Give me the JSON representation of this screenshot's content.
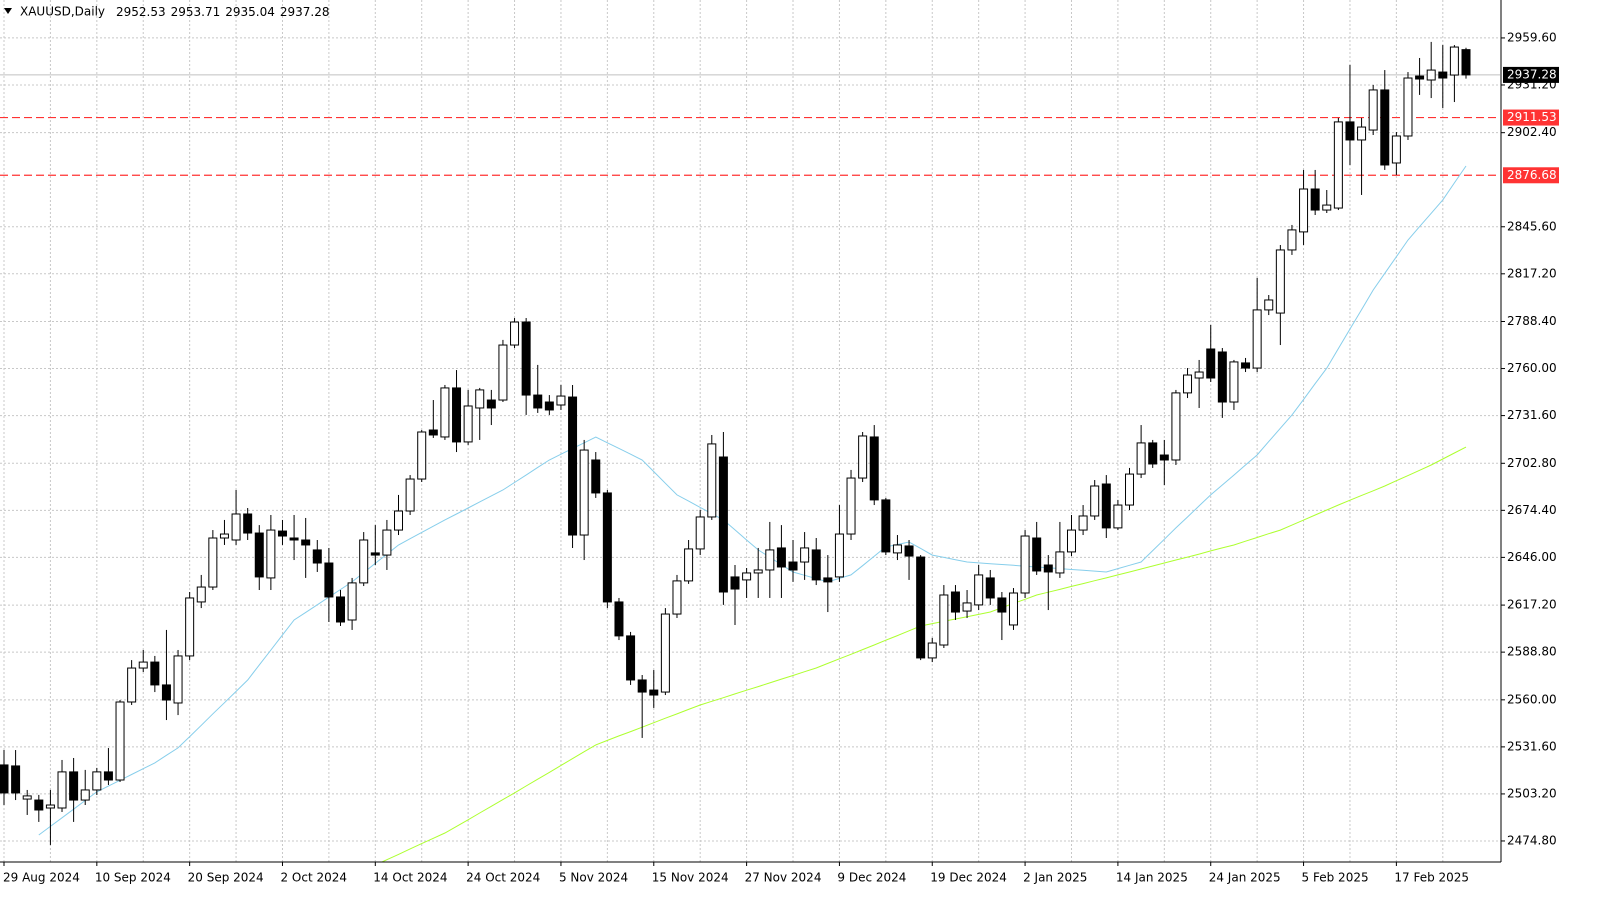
{
  "chart_data": {
    "type": "candlestick",
    "title": "XAUUSD,Daily",
    "categories": [
      "29 Aug 2024",
      null,
      null,
      null,
      null,
      null,
      null,
      null,
      "10 Sep 2024",
      null,
      null,
      null,
      null,
      null,
      null,
      null,
      "20 Sep 2024",
      null,
      null,
      null,
      null,
      null,
      null,
      null,
      "2 Oct 2024",
      null,
      null,
      null,
      null,
      null,
      null,
      null,
      "14 Oct 2024",
      null,
      null,
      null,
      null,
      null,
      null,
      null,
      "24 Oct 2024",
      null,
      null,
      null,
      null,
      null,
      null,
      null,
      "5 Nov 2024",
      null,
      null,
      null,
      null,
      null,
      null,
      null,
      "15 Nov 2024",
      null,
      null,
      null,
      null,
      null,
      null,
      null,
      "27 Nov 2024",
      null,
      null,
      null,
      null,
      null,
      null,
      null,
      "9 Dec 2024",
      null,
      null,
      null,
      null,
      null,
      null,
      null,
      "19 Dec 2024",
      null,
      null,
      null,
      null,
      null,
      null,
      null,
      "2 Jan 2025",
      null,
      null,
      null,
      null,
      null,
      null,
      null,
      "14 Jan 2025",
      null,
      null,
      null,
      null,
      null,
      null,
      null,
      "24 Jan 2025",
      null,
      null,
      null,
      null,
      null,
      null,
      null,
      "5 Feb 2025",
      null,
      null,
      null,
      null,
      null,
      null,
      null,
      "17 Feb 2025",
      null,
      null,
      null,
      null,
      null,
      null
    ],
    "candles": [
      [
        2520.7,
        2529.7,
        2496.5,
        2503.8
      ],
      [
        2520.1,
        2529.7,
        2499.5,
        2503.8
      ],
      [
        2500.1,
        2505.6,
        2490.5,
        2502.0
      ],
      [
        2499.5,
        2502.6,
        2486.3,
        2493.5
      ],
      [
        2494.7,
        2505.6,
        2472.4,
        2496.5
      ],
      [
        2494.7,
        2523.7,
        2492.3,
        2516.5
      ],
      [
        2516.5,
        2524.9,
        2486.3,
        2499.5
      ],
      [
        2499.5,
        2517.7,
        2496.5,
        2505.6
      ],
      [
        2505.6,
        2518.9,
        2502.6,
        2516.5
      ],
      [
        2516.5,
        2530.9,
        2508.6,
        2511.6
      ],
      [
        2511.6,
        2559.9,
        2510.4,
        2558.7
      ],
      [
        2558.7,
        2584.0,
        2556.9,
        2579.2
      ],
      [
        2579.2,
        2590.1,
        2576.8,
        2582.8
      ],
      [
        2582.8,
        2586.5,
        2564.7,
        2569.0
      ],
      [
        2569.0,
        2602.2,
        2547.8,
        2559.9
      ],
      [
        2558.1,
        2590.1,
        2550.8,
        2586.5
      ],
      [
        2586.5,
        2625.1,
        2584.0,
        2621.5
      ],
      [
        2619.1,
        2635.4,
        2615.4,
        2628.1
      ],
      [
        2628.1,
        2662.5,
        2626.3,
        2657.7
      ],
      [
        2657.7,
        2668.6,
        2653.5,
        2660.1
      ],
      [
        2656.5,
        2686.7,
        2653.5,
        2672.2
      ],
      [
        2672.2,
        2675.8,
        2656.5,
        2660.7
      ],
      [
        2660.7,
        2665.5,
        2626.3,
        2634.2
      ],
      [
        2633.6,
        2671.6,
        2626.3,
        2662.5
      ],
      [
        2661.9,
        2668.6,
        2653.5,
        2658.9
      ],
      [
        2657.7,
        2671.6,
        2644.4,
        2656.5
      ],
      [
        2656.5,
        2669.8,
        2633.6,
        2653.5
      ],
      [
        2650.5,
        2656.5,
        2637.2,
        2642.6
      ],
      [
        2642.6,
        2651.7,
        2607.0,
        2622.1
      ],
      [
        2622.1,
        2626.3,
        2604.6,
        2607.0
      ],
      [
        2608.2,
        2633.6,
        2602.2,
        2630.6
      ],
      [
        2630.6,
        2661.3,
        2628.7,
        2656.5
      ],
      [
        2648.7,
        2665.5,
        2641.4,
        2647.4
      ],
      [
        2647.4,
        2668.6,
        2638.4,
        2662.5
      ],
      [
        2662.5,
        2683.7,
        2659.5,
        2674.0
      ],
      [
        2674.0,
        2695.7,
        2671.6,
        2693.3
      ],
      [
        2693.3,
        2722.9,
        2691.5,
        2721.7
      ],
      [
        2722.9,
        2741.0,
        2718.1,
        2719.9
      ],
      [
        2718.7,
        2750.1,
        2716.9,
        2748.3
      ],
      [
        2748.3,
        2759.1,
        2709.6,
        2715.7
      ],
      [
        2715.7,
        2747.1,
        2713.9,
        2737.4
      ],
      [
        2736.2,
        2748.3,
        2716.9,
        2747.1
      ],
      [
        2741.0,
        2747.1,
        2725.9,
        2736.2
      ],
      [
        2741.0,
        2777.3,
        2739.8,
        2774.2
      ],
      [
        2774.2,
        2790.5,
        2772.4,
        2788.1
      ],
      [
        2788.1,
        2790.5,
        2732.0,
        2744.0
      ],
      [
        2744.0,
        2762.2,
        2733.2,
        2736.2
      ],
      [
        2739.8,
        2744.0,
        2732.0,
        2735.0
      ],
      [
        2738.0,
        2750.1,
        2735.0,
        2743.4
      ],
      [
        2742.8,
        2750.1,
        2651.7,
        2659.5
      ],
      [
        2659.5,
        2716.9,
        2644.4,
        2710.8
      ],
      [
        2704.8,
        2709.6,
        2681.9,
        2684.9
      ],
      [
        2684.9,
        2686.7,
        2615.4,
        2619.1
      ],
      [
        2619.1,
        2621.5,
        2596.1,
        2598.6
      ],
      [
        2598.6,
        2601.0,
        2569.0,
        2572.0
      ],
      [
        2572.0,
        2575.0,
        2537.0,
        2564.7
      ],
      [
        2565.9,
        2578.0,
        2555.1,
        2562.9
      ],
      [
        2564.7,
        2615.4,
        2562.9,
        2611.8
      ],
      [
        2611.8,
        2635.4,
        2609.4,
        2631.8
      ],
      [
        2631.8,
        2656.5,
        2630.0,
        2651.1
      ],
      [
        2651.1,
        2674.6,
        2647.4,
        2670.4
      ],
      [
        2670.4,
        2719.9,
        2668.6,
        2714.5
      ],
      [
        2706.6,
        2721.7,
        2617.3,
        2625.1
      ],
      [
        2634.2,
        2641.4,
        2605.2,
        2626.9
      ],
      [
        2632.4,
        2639.6,
        2621.5,
        2636.6
      ],
      [
        2636.6,
        2651.7,
        2621.5,
        2638.4
      ],
      [
        2638.4,
        2667.4,
        2621.5,
        2650.5
      ],
      [
        2651.7,
        2665.5,
        2621.5,
        2640.2
      ],
      [
        2643.2,
        2656.5,
        2631.2,
        2638.4
      ],
      [
        2643.2,
        2661.3,
        2632.4,
        2651.7
      ],
      [
        2650.5,
        2657.7,
        2629.3,
        2632.4
      ],
      [
        2633.6,
        2647.4,
        2613.0,
        2631.2
      ],
      [
        2634.2,
        2677.6,
        2631.2,
        2660.1
      ],
      [
        2660.1,
        2698.8,
        2656.5,
        2693.9
      ],
      [
        2693.9,
        2721.7,
        2691.5,
        2719.3
      ],
      [
        2718.7,
        2725.9,
        2677.6,
        2680.7
      ],
      [
        2680.7,
        2681.9,
        2647.4,
        2649.3
      ],
      [
        2648.7,
        2659.5,
        2644.4,
        2653.5
      ],
      [
        2652.9,
        2656.5,
        2632.4,
        2646.8
      ],
      [
        2646.2,
        2647.4,
        2584.0,
        2585.3
      ],
      [
        2585.3,
        2597.4,
        2582.8,
        2594.3
      ],
      [
        2593.1,
        2629.3,
        2591.3,
        2623.3
      ],
      [
        2625.1,
        2629.3,
        2608.2,
        2613.0
      ],
      [
        2613.6,
        2626.3,
        2609.4,
        2618.5
      ],
      [
        2617.3,
        2641.4,
        2614.2,
        2635.4
      ],
      [
        2633.6,
        2638.4,
        2617.3,
        2621.5
      ],
      [
        2621.5,
        2625.1,
        2596.1,
        2613.0
      ],
      [
        2605.2,
        2627.5,
        2602.2,
        2624.5
      ],
      [
        2624.5,
        2662.5,
        2621.5,
        2658.9
      ],
      [
        2657.7,
        2667.4,
        2635.4,
        2637.8
      ],
      [
        2641.4,
        2647.4,
        2614.2,
        2637.2
      ],
      [
        2636.6,
        2667.4,
        2633.6,
        2649.3
      ],
      [
        2649.3,
        2671.6,
        2646.8,
        2662.5
      ],
      [
        2662.5,
        2677.6,
        2659.5,
        2671.0
      ],
      [
        2671.0,
        2692.7,
        2668.6,
        2689.1
      ],
      [
        2690.3,
        2695.7,
        2657.7,
        2663.8
      ],
      [
        2663.8,
        2680.7,
        2662.5,
        2677.6
      ],
      [
        2677.6,
        2700.0,
        2674.6,
        2696.3
      ],
      [
        2696.3,
        2725.9,
        2693.9,
        2715.1
      ],
      [
        2715.1,
        2716.9,
        2700.0,
        2702.4
      ],
      [
        2707.8,
        2716.9,
        2689.7,
        2704.8
      ],
      [
        2704.8,
        2747.1,
        2701.8,
        2745.3
      ],
      [
        2745.3,
        2760.3,
        2742.2,
        2756.1
      ],
      [
        2754.3,
        2765.2,
        2736.2,
        2757.9
      ],
      [
        2771.8,
        2786.3,
        2751.9,
        2754.3
      ],
      [
        2770.0,
        2772.4,
        2730.2,
        2739.8
      ],
      [
        2739.8,
        2765.2,
        2735.0,
        2764.0
      ],
      [
        2763.4,
        2766.4,
        2757.9,
        2760.3
      ],
      [
        2760.3,
        2814.7,
        2757.9,
        2795.4
      ],
      [
        2795.4,
        2804.4,
        2792.3,
        2801.4
      ],
      [
        2793.5,
        2834.6,
        2774.2,
        2831.6
      ],
      [
        2831.6,
        2846.7,
        2828.6,
        2843.7
      ],
      [
        2842.5,
        2879.9,
        2834.6,
        2868.4
      ],
      [
        2868.4,
        2879.9,
        2852.7,
        2855.7
      ],
      [
        2855.7,
        2867.8,
        2853.9,
        2858.7
      ],
      [
        2856.9,
        2911.3,
        2855.7,
        2908.9
      ],
      [
        2908.9,
        2943.3,
        2882.9,
        2898.0
      ],
      [
        2898.0,
        2911.3,
        2864.8,
        2905.8
      ],
      [
        2904.0,
        2931.2,
        2901.0,
        2928.2
      ],
      [
        2928.2,
        2940.2,
        2879.9,
        2882.9
      ],
      [
        2884.1,
        2902.8,
        2876.9,
        2900.4
      ],
      [
        2900.4,
        2939.0,
        2898.0,
        2935.4
      ],
      [
        2936.6,
        2947.5,
        2925.2,
        2934.8
      ],
      [
        2934.2,
        2957.2,
        2923.3,
        2940.2
      ],
      [
        2939.0,
        2955.3,
        2917.3,
        2935.4
      ],
      [
        2937.2,
        2955.3,
        2920.9,
        2954.1
      ],
      [
        2952.53,
        2953.71,
        2935.04,
        2937.28
      ]
    ],
    "series": [
      {
        "color": "#87ceeb",
        "values": [
          null,
          null,
          null,
          2478.4,
          2483.6,
          2488.8,
          2494.0,
          2499.2,
          2504.4,
          2507.9,
          2511.4,
          2514.9,
          2518.4,
          2521.9,
          2526.5,
          2531.0,
          2537.8,
          2544.6,
          2551.6,
          2558.3,
          2565.1,
          2572.0,
          2581.1,
          2590.1,
          2599.2,
          2608.2,
          2612.8,
          2617.4,
          2622.0,
          2626.6,
          2631.2,
          2636.8,
          2642.4,
          2647.9,
          2653.5,
          2657.3,
          2661.1,
          2664.8,
          2668.6,
          2672.2,
          2675.8,
          2679.5,
          2683.1,
          2686.7,
          2691.2,
          2695.7,
          2700.3,
          2704.8,
          2708.3,
          2711.8,
          2715.2,
          2718.7,
          2715.2,
          2711.8,
          2708.3,
          2704.8,
          2697.8,
          2690.7,
          2683.7,
          2680.0,
          2676.2,
          2672.4,
          2668.6,
          2662.6,
          2656.5,
          2650.5,
          2646.1,
          2641.6,
          2637.2,
          2635.2,
          2633.2,
          2631.2,
          2633.3,
          2635.4,
          2641.0,
          2646.7,
          2652.3,
          2653.8,
          2655.3,
          2651.4,
          2647.4,
          2646.0,
          2644.6,
          2643.2,
          2642.7,
          2642.2,
          2641.7,
          2641.2,
          2640.7,
          2640.2,
          2639.7,
          2639.2,
          2638.7,
          2638.2,
          2637.7,
          2637.2,
          2639.2,
          2641.2,
          2643.2,
          2650.1,
          2656.9,
          2663.8,
          2670.4,
          2677.1,
          2683.7,
          2689.7,
          2695.7,
          2701.8,
          2707.8,
          2715.9,
          2723.9,
          2732.0,
          2741.4,
          2750.9,
          2760.3,
          2772.1,
          2783.9,
          2795.6,
          2807.4,
          2817.5,
          2827.5,
          2837.6,
          2845.7,
          2853.7,
          2861.8,
          2872.1,
          2882.3
        ]
      },
      {
        "color": "#adff2f",
        "values": [
          null,
          null,
          null,
          null,
          null,
          null,
          null,
          null,
          null,
          null,
          null,
          null,
          null,
          null,
          null,
          null,
          null,
          null,
          null,
          null,
          null,
          null,
          null,
          null,
          null,
          null,
          null,
          null,
          null,
          null,
          null,
          null,
          2460.3,
          2463.5,
          2466.7,
          2470.0,
          2473.2,
          2476.4,
          2479.6,
          2483.6,
          2487.6,
          2491.7,
          2495.7,
          2499.8,
          2503.8,
          2508.0,
          2512.1,
          2516.2,
          2520.4,
          2524.5,
          2528.7,
          2532.8,
          2535.5,
          2538.2,
          2540.8,
          2543.5,
          2546.2,
          2548.9,
          2551.5,
          2554.2,
          2556.9,
          2559.1,
          2561.3,
          2563.6,
          2565.8,
          2568.0,
          2570.2,
          2572.5,
          2574.7,
          2577.0,
          2579.2,
          2582.0,
          2584.8,
          2587.5,
          2590.3,
          2593.1,
          2596.0,
          2598.8,
          2601.7,
          2604.6,
          2606.0,
          2607.4,
          2608.8,
          2610.2,
          2611.6,
          2613.0,
          2615.6,
          2618.2,
          2620.7,
          2623.3,
          2625.0,
          2626.7,
          2628.5,
          2630.2,
          2631.9,
          2633.6,
          2635.4,
          2637.2,
          2639.0,
          2640.8,
          2642.6,
          2644.4,
          2646.2,
          2648.0,
          2649.9,
          2651.7,
          2653.5,
          2655.8,
          2658.0,
          2660.3,
          2662.5,
          2665.5,
          2668.5,
          2671.6,
          2674.6,
          2677.6,
          2680.5,
          2683.4,
          2686.2,
          2689.1,
          2692.3,
          2695.4,
          2698.6,
          2701.8,
          2705.4,
          2709.0,
          2712.6
        ]
      }
    ],
    "levels": [
      2911.53,
      2876.68
    ],
    "level_color": "#ff3333",
    "ylim": [
      2462.1,
      2982.5
    ],
    "yticks": [
      {
        "value": 2959.6,
        "label": "2959.60"
      },
      {
        "value": 2931.2,
        "label": "2931.20"
      },
      {
        "value": 2902.4,
        "label": "2902.40"
      },
      {
        "value": 2845.6,
        "label": "2845.60"
      },
      {
        "value": 2817.2,
        "label": "2817.20"
      },
      {
        "value": 2788.4,
        "label": "2788.40"
      },
      {
        "value": 2760,
        "label": "2760.00"
      },
      {
        "value": 2731.6,
        "label": "2731.60"
      },
      {
        "value": 2702.8,
        "label": "2702.80"
      },
      {
        "value": 2674.4,
        "label": "2674.40"
      },
      {
        "value": 2646,
        "label": "2646.00"
      },
      {
        "value": 2617.2,
        "label": "2617.20"
      },
      {
        "value": 2588.8,
        "label": "2588.80"
      },
      {
        "value": 2560,
        "label": "2560.00"
      },
      {
        "value": 2531.6,
        "label": "2531.60"
      },
      {
        "value": 2503.2,
        "label": "2503.20"
      },
      {
        "value": 2474.8,
        "label": "2474.80"
      }
    ],
    "grid": true
  }
}
